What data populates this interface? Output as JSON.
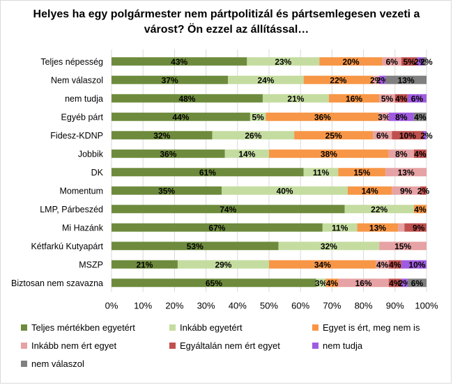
{
  "chart_data": {
    "type": "bar",
    "orientation": "horizontal",
    "stacked": true,
    "percent_stacked": true,
    "title": "Helyes ha egy polgármester nem pártpolitizál és pártsemlegesen vezeti a várost? Ön ezzel az állítással…",
    "xlabel": "",
    "ylabel": "",
    "xlim": [
      0,
      100
    ],
    "x_ticks": [
      "0%",
      "10%",
      "20%",
      "30%",
      "40%",
      "50%",
      "60%",
      "70%",
      "80%",
      "90%",
      "100%"
    ],
    "grid": true,
    "legend_position": "bottom",
    "categories": [
      "Teljes népesség",
      "Nem válaszol",
      "nem tudja",
      "Egyéb párt",
      "Fidesz-KDNP",
      "Jobbik",
      "DK",
      "Momentum",
      "LMP, Párbeszéd",
      "Mi Hazánk",
      "Kétfarkú Kutyapárt",
      "MSZP",
      "Biztosan nem szavazna"
    ],
    "series": [
      {
        "name": "Teljes mértékben egyetért",
        "color": "#6e8b3d",
        "values": [
          43,
          37,
          48,
          44,
          32,
          36,
          61,
          35,
          74,
          67,
          53,
          21,
          65
        ]
      },
      {
        "name": "Inkább egyetért",
        "color": "#c5dca0",
        "values": [
          23,
          24,
          21,
          5,
          26,
          14,
          11,
          40,
          22,
          11,
          32,
          29,
          3
        ]
      },
      {
        "name": "Egyet is ért, meg nem is",
        "color": "#f79646",
        "values": [
          20,
          22,
          16,
          36,
          25,
          38,
          15,
          14,
          4,
          13,
          0,
          34,
          4
        ]
      },
      {
        "name": "Inkább nem ért egyet",
        "color": "#e6a2a4",
        "values": [
          6,
          2,
          5,
          3,
          6,
          8,
          13,
          9,
          0,
          2,
          15,
          4,
          16
        ]
      },
      {
        "name": "Egyáltalán nem ért egyet",
        "color": "#c0504d",
        "values": [
          5,
          0,
          4,
          0,
          10,
          4,
          0,
          2,
          0,
          9,
          0,
          4,
          4
        ]
      },
      {
        "name": "nem tudja",
        "color": "#a05ce0",
        "values": [
          2,
          2,
          6,
          8,
          2,
          0,
          0,
          0,
          0,
          0,
          0,
          10,
          2
        ]
      },
      {
        "name": "nem válaszol",
        "color": "#808080",
        "values": [
          2,
          13,
          0,
          4,
          0,
          0,
          0,
          0,
          0,
          0,
          0,
          0,
          6
        ]
      }
    ],
    "data_labels": [
      [
        "43%",
        "23%",
        "20%",
        "6%",
        "5%",
        "2%",
        "2%"
      ],
      [
        "37%",
        "24%",
        "22%",
        "2%",
        "",
        "2%",
        "13%"
      ],
      [
        "48%",
        "21%",
        "16%",
        "5%",
        "4%",
        "6%",
        ""
      ],
      [
        "44%",
        "5%",
        "36%",
        "3%",
        "",
        "8%",
        "4%"
      ],
      [
        "32%",
        "26%",
        "25%",
        "6%",
        "10%",
        "2%",
        ""
      ],
      [
        "36%",
        "14%",
        "38%",
        "8%",
        "4%",
        "",
        ""
      ],
      [
        "61%",
        "11%",
        "15%",
        "13%",
        "",
        "",
        ""
      ],
      [
        "35%",
        "40%",
        "14%",
        "9%",
        "2%",
        "",
        ""
      ],
      [
        "74%",
        "22%",
        "4%",
        "",
        "",
        "",
        ""
      ],
      [
        "67%",
        "11%",
        "13%",
        "",
        "9%",
        "",
        ""
      ],
      [
        "53%",
        "32%",
        "",
        "15%",
        "",
        "",
        ""
      ],
      [
        "21%",
        "29%",
        "34%",
        "4%",
        "4%",
        "10%",
        ""
      ],
      [
        "65%",
        "3%",
        "4%",
        "16%",
        "4%",
        "2%",
        "6%"
      ]
    ]
  }
}
